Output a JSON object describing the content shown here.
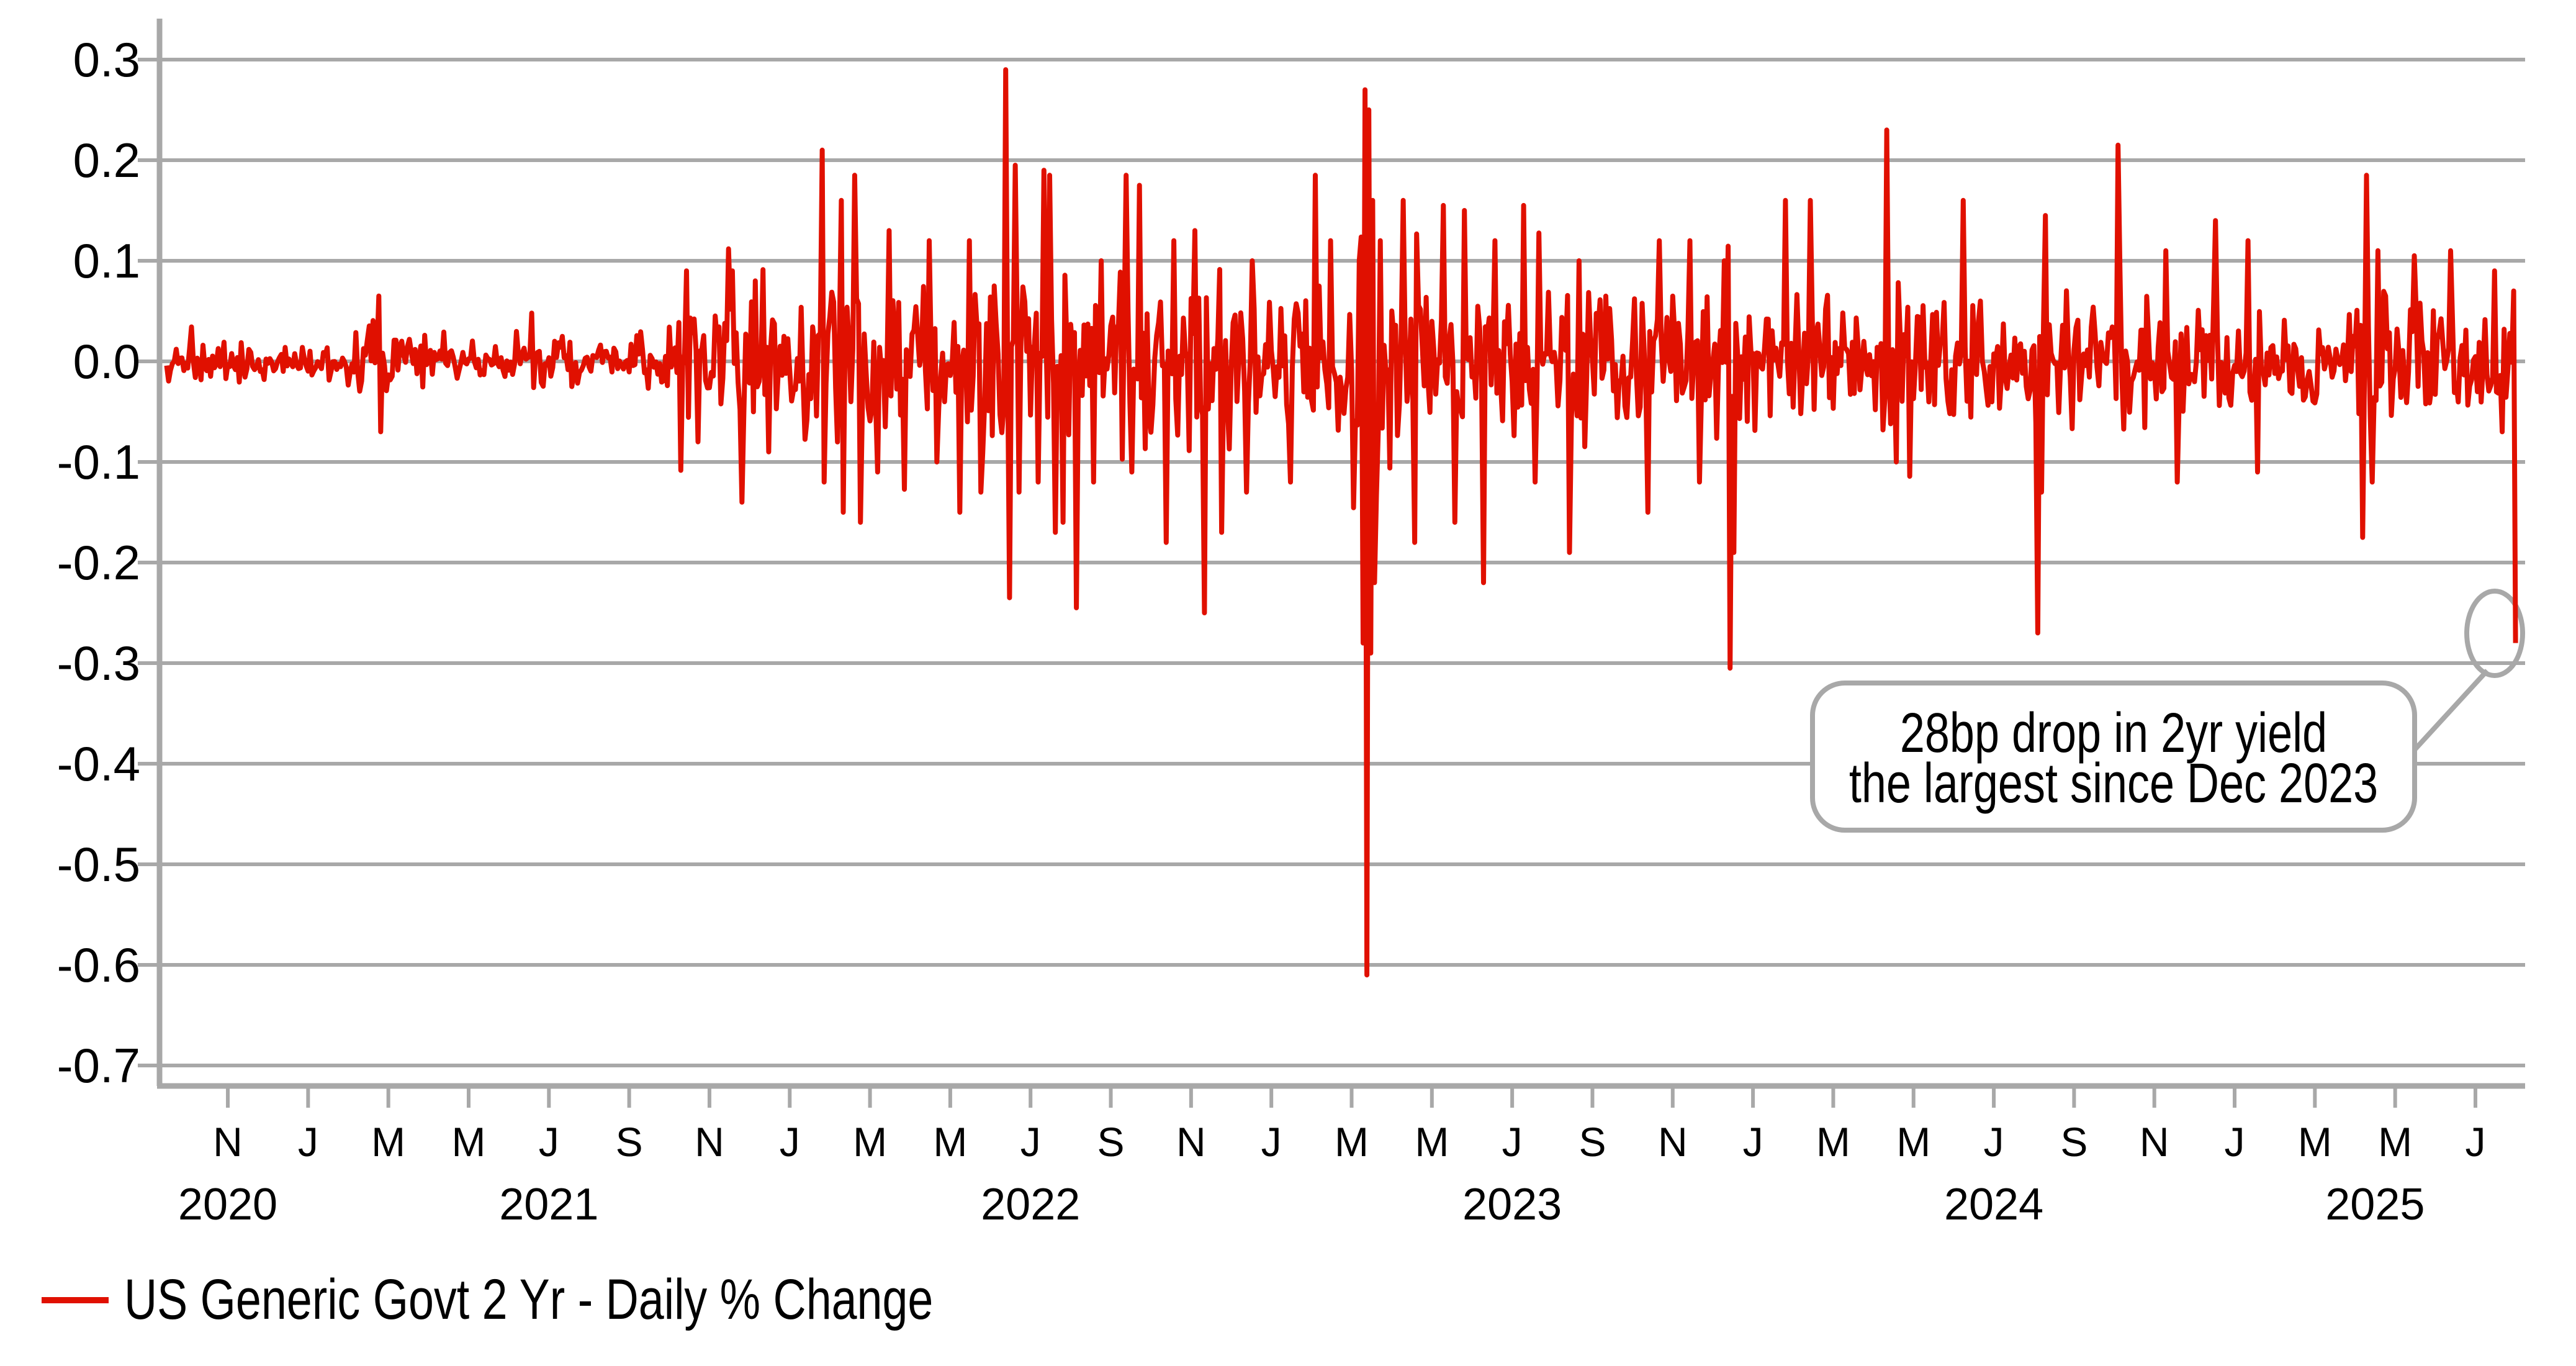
{
  "style": {
    "background_color": "#ffffff",
    "grid_color": "#a8a8a8",
    "text_color": "#000000",
    "series_color": "#e01000"
  },
  "legend": {
    "label": "US Generic Govt 2 Yr - Daily % Change",
    "marker": "red-line"
  },
  "annotation": {
    "line1": "28bp drop in 2yr yield",
    "line2": "the largest since Dec 2023",
    "shape": "rounded-callout-box-with-ellipse-on-last-point"
  },
  "chart_data": {
    "type": "line",
    "title": "",
    "xlabel": "",
    "ylabel": "",
    "grid": true,
    "legend_position": "bottom-left",
    "y_axis": {
      "min": -0.725,
      "max": 0.335,
      "tick_step": 0.1,
      "ticks": [
        {
          "value": 0.3,
          "label": "0.3"
        },
        {
          "value": 0.2,
          "label": "0.2"
        },
        {
          "value": 0.1,
          "label": "0.1"
        },
        {
          "value": 0.0,
          "label": "0.0"
        },
        {
          "value": -0.1,
          "label": "-0.1"
        },
        {
          "value": -0.2,
          "label": "-0.2"
        },
        {
          "value": -0.3,
          "label": "-0.3"
        },
        {
          "value": -0.4,
          "label": "-0.4"
        },
        {
          "value": -0.5,
          "label": "-0.5"
        },
        {
          "value": -0.6,
          "label": "-0.6"
        },
        {
          "value": -0.7,
          "label": "-0.7"
        }
      ]
    },
    "x_axis": {
      "start_month": "2020-09",
      "end_month": "2025-08",
      "month_index_note": "m = months since 2020-09 (2020-09 = 0)",
      "ticks": [
        {
          "m": 2,
          "label": "N"
        },
        {
          "m": 4,
          "label": "J"
        },
        {
          "m": 6,
          "label": "M"
        },
        {
          "m": 8,
          "label": "M"
        },
        {
          "m": 10,
          "label": "J"
        },
        {
          "m": 12,
          "label": "S"
        },
        {
          "m": 14,
          "label": "N"
        },
        {
          "m": 16,
          "label": "J"
        },
        {
          "m": 18,
          "label": "M"
        },
        {
          "m": 20,
          "label": "M"
        },
        {
          "m": 22,
          "label": "J"
        },
        {
          "m": 24,
          "label": "S"
        },
        {
          "m": 26,
          "label": "N"
        },
        {
          "m": 28,
          "label": "J"
        },
        {
          "m": 30,
          "label": "M"
        },
        {
          "m": 32,
          "label": "M"
        },
        {
          "m": 34,
          "label": "J"
        },
        {
          "m": 36,
          "label": "S"
        },
        {
          "m": 38,
          "label": "N"
        },
        {
          "m": 40,
          "label": "J"
        },
        {
          "m": 42,
          "label": "M"
        },
        {
          "m": 44,
          "label": "M"
        },
        {
          "m": 46,
          "label": "J"
        },
        {
          "m": 48,
          "label": "S"
        },
        {
          "m": 50,
          "label": "N"
        },
        {
          "m": 52,
          "label": "J"
        },
        {
          "m": 54,
          "label": "M"
        },
        {
          "m": 56,
          "label": "M"
        },
        {
          "m": 58,
          "label": "J"
        }
      ],
      "year_labels": [
        {
          "text": "2020",
          "m": 2
        },
        {
          "text": "2021",
          "m": 10
        },
        {
          "text": "2022",
          "m": 22
        },
        {
          "text": "2023",
          "m": 34
        },
        {
          "text": "2024",
          "m": 46
        },
        {
          "text": "2025",
          "m": 55.5
        }
      ]
    },
    "series": [
      {
        "name": "US Generic Govt 2 Yr - Daily % Change",
        "color": "#e01000",
        "unit": "percentage points per day",
        "sampling": "daily (21 trading days per month)",
        "first_month_start_day": 10,
        "noise_seed": 91,
        "monthly_volatility_note": "typical daily-move amplitude per month from 2020-09 to 2025-07, read from the plot envelope",
        "monthly_volatility": [
          0.01,
          0.011,
          0.012,
          0.01,
          0.011,
          0.02,
          0.018,
          0.012,
          0.012,
          0.016,
          0.015,
          0.014,
          0.018,
          0.03,
          0.034,
          0.032,
          0.042,
          0.055,
          0.048,
          0.042,
          0.048,
          0.06,
          0.052,
          0.042,
          0.052,
          0.05,
          0.05,
          0.042,
          0.042,
          0.045,
          0.08,
          0.048,
          0.048,
          0.042,
          0.042,
          0.038,
          0.036,
          0.04,
          0.04,
          0.045,
          0.04,
          0.04,
          0.032,
          0.04,
          0.036,
          0.032,
          0.032,
          0.044,
          0.036,
          0.036,
          0.032,
          0.032,
          0.032,
          0.028,
          0.028,
          0.048,
          0.032,
          0.028,
          0.028
        ],
        "key_moves_note": "visible extreme daily moves: [month index m since 2020-09, trading day 0-20, value]",
        "key_moves": [
          [
            5,
            16,
            0.065
          ],
          [
            5,
            17,
            -0.07
          ],
          [
            9,
            12,
            0.048
          ],
          [
            13,
            9,
            0.09
          ],
          [
            13,
            15,
            -0.08
          ],
          [
            14,
            12,
            0.09
          ],
          [
            14,
            17,
            -0.14
          ],
          [
            15,
            3,
            0.08
          ],
          [
            15,
            10,
            -0.09
          ],
          [
            16,
            17,
            0.21
          ],
          [
            16,
            18,
            -0.12
          ],
          [
            17,
            6,
            0.16
          ],
          [
            17,
            7,
            -0.15
          ],
          [
            17,
            13,
            0.185
          ],
          [
            17,
            16,
            -0.16
          ],
          [
            18,
            4,
            -0.11
          ],
          [
            18,
            10,
            0.13
          ],
          [
            19,
            10,
            0.12
          ],
          [
            19,
            14,
            -0.1
          ],
          [
            20,
            5,
            -0.15
          ],
          [
            20,
            10,
            0.12
          ],
          [
            20,
            16,
            -0.13
          ],
          [
            21,
            8,
            0.29
          ],
          [
            21,
            10,
            -0.235
          ],
          [
            21,
            13,
            0.195
          ],
          [
            21,
            15,
            -0.13
          ],
          [
            22,
            4,
            -0.12
          ],
          [
            22,
            7,
            0.19
          ],
          [
            22,
            10,
            0.185
          ],
          [
            22,
            13,
            -0.17
          ],
          [
            22,
            17,
            -0.16
          ],
          [
            23,
            3,
            -0.245
          ],
          [
            23,
            12,
            -0.12
          ],
          [
            23,
            16,
            0.1
          ],
          [
            24,
            8,
            0.185
          ],
          [
            24,
            11,
            -0.11
          ],
          [
            24,
            15,
            0.175
          ],
          [
            25,
            8,
            -0.18
          ],
          [
            25,
            12,
            0.12
          ],
          [
            26,
            2,
            0.13
          ],
          [
            26,
            7,
            -0.25
          ],
          [
            26,
            16,
            -0.17
          ],
          [
            27,
            8,
            -0.13
          ],
          [
            27,
            11,
            0.1
          ],
          [
            28,
            10,
            -0.12
          ],
          [
            29,
            2,
            0.185
          ],
          [
            29,
            10,
            0.12
          ],
          [
            30,
            4,
            0.1
          ],
          [
            30,
            6,
            -0.28
          ],
          [
            30,
            7,
            0.27
          ],
          [
            30,
            8,
            -0.61
          ],
          [
            30,
            9,
            0.25
          ],
          [
            30,
            10,
            -0.29
          ],
          [
            30,
            11,
            0.16
          ],
          [
            30,
            12,
            -0.22
          ],
          [
            30,
            15,
            0.12
          ],
          [
            31,
            6,
            0.16
          ],
          [
            31,
            12,
            -0.18
          ],
          [
            32,
            6,
            0.155
          ],
          [
            32,
            12,
            -0.16
          ],
          [
            32,
            17,
            0.15
          ],
          [
            33,
            6,
            -0.22
          ],
          [
            33,
            12,
            0.12
          ],
          [
            34,
            6,
            0.155
          ],
          [
            34,
            12,
            -0.12
          ],
          [
            35,
            9,
            -0.19
          ],
          [
            35,
            14,
            0.1
          ],
          [
            37,
            8,
            -0.15
          ],
          [
            37,
            14,
            0.12
          ],
          [
            38,
            9,
            0.12
          ],
          [
            38,
            14,
            -0.12
          ],
          [
            39,
            6,
            0.1
          ],
          [
            39,
            9,
            -0.305
          ],
          [
            39,
            11,
            -0.19
          ],
          [
            40,
            17,
            0.16
          ],
          [
            41,
            9,
            0.16
          ],
          [
            43,
            7,
            0.23
          ],
          [
            43,
            12,
            -0.1
          ],
          [
            45,
            5,
            0.16
          ],
          [
            47,
            2,
            -0.27
          ],
          [
            47,
            4,
            -0.13
          ],
          [
            47,
            6,
            0.145
          ],
          [
            49,
            2,
            0.215
          ],
          [
            50,
            6,
            0.11
          ],
          [
            50,
            12,
            -0.12
          ],
          [
            51,
            11,
            0.14
          ],
          [
            52,
            7,
            0.12
          ],
          [
            52,
            12,
            -0.11
          ],
          [
            55,
            4,
            -0.175
          ],
          [
            55,
            6,
            0.185
          ],
          [
            55,
            9,
            -0.12
          ],
          [
            55,
            12,
            0.11
          ],
          [
            56,
            10,
            0.105
          ],
          [
            57,
            8,
            0.11
          ],
          [
            58,
            10,
            0.09
          ],
          [
            58,
            14,
            -0.07
          ],
          [
            58,
            20,
            0.07
          ]
        ],
        "final_point": {
          "date": "2025-08",
          "value": -0.28,
          "highlighted": true
        }
      }
    ]
  }
}
